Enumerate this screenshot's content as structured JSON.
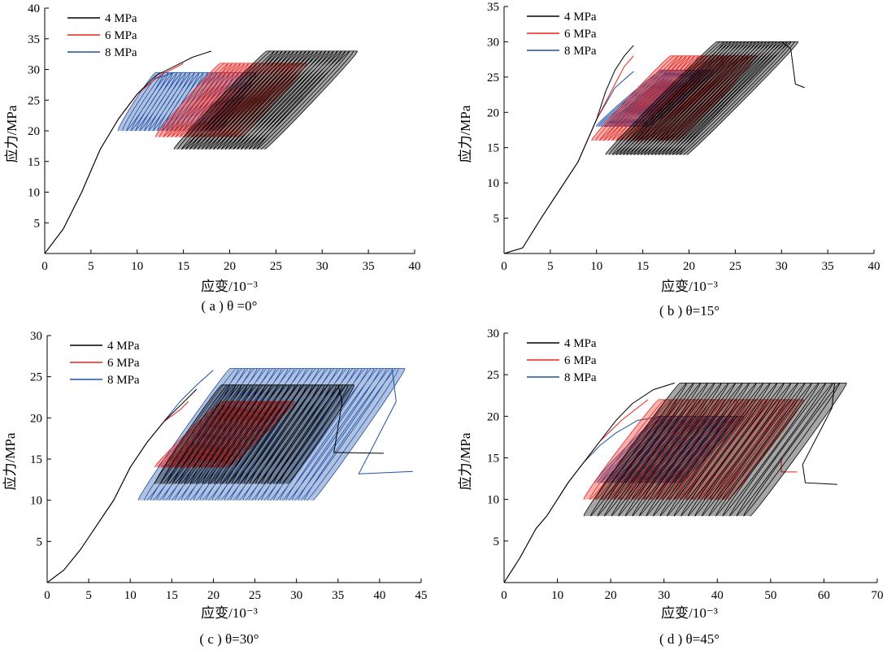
{
  "chart_data": [
    {
      "type": "line",
      "caption": "( a ) θ =0°",
      "xlabel": "应变/10⁻³",
      "ylabel": "应力/MPa",
      "xlim": [
        0,
        40
      ],
      "ylim": [
        0,
        40
      ],
      "xticks": [
        "0",
        "5",
        "10",
        "15",
        "20",
        "25",
        "30",
        "35",
        "40"
      ],
      "yticks": [
        "5",
        "10",
        "15",
        "20",
        "25",
        "30",
        "35",
        "40"
      ],
      "legend_position": "top-left",
      "series": [
        {
          "name": "4 MPa",
          "color": "#000000",
          "loading": [
            [
              0,
              0
            ],
            [
              2,
              4
            ],
            [
              4,
              10
            ],
            [
              6,
              17
            ],
            [
              8,
              22
            ],
            [
              10,
              26
            ],
            [
              12,
              29
            ],
            [
              14,
              30.5
            ],
            [
              16,
              32
            ],
            [
              18,
              33
            ]
          ],
          "cycles": {
            "start": 14,
            "end": 33,
            "count": 22,
            "shift": 10,
            "lower": 17,
            "upper": 33
          },
          "post_peak": []
        },
        {
          "name": "6 MPa",
          "color": "#e8231c",
          "loading": [
            [
              0,
              0
            ],
            [
              2,
              4
            ],
            [
              4,
              10
            ],
            [
              6,
              17
            ],
            [
              8,
              22
            ],
            [
              10,
              26
            ],
            [
              12,
              28.5
            ],
            [
              13,
              29.5
            ],
            [
              14,
              30.2
            ],
            [
              15,
              31
            ]
          ],
          "cycles": {
            "start": 12,
            "end": 27.5,
            "count": 20,
            "shift": 7,
            "lower": 19,
            "upper": 31
          },
          "post_peak": []
        },
        {
          "name": "8 MPa",
          "color": "#1e4fa5",
          "loading": [
            [
              0,
              0
            ],
            [
              2,
              4
            ],
            [
              4,
              10
            ],
            [
              6,
              17
            ],
            [
              8,
              22
            ],
            [
              10,
              26
            ],
            [
              12,
              28.5
            ],
            [
              14,
              29.5
            ]
          ],
          "cycles": {
            "start": 8,
            "end": 22,
            "count": 22,
            "shift": 4,
            "lower": 20,
            "upper": 29.5
          },
          "post_peak": []
        }
      ]
    },
    {
      "type": "line",
      "caption": "( b ) θ=15°",
      "xlabel": "应变/10⁻³",
      "ylabel": "应力/MPa",
      "xlim": [
        0,
        40
      ],
      "ylim": [
        0,
        35
      ],
      "xticks": [
        "0",
        "5",
        "10",
        "15",
        "20",
        "25",
        "30",
        "35",
        "40"
      ],
      "yticks": [
        "5",
        "10",
        "15",
        "20",
        "25",
        "30",
        "35"
      ],
      "legend_position": "top-left",
      "series": [
        {
          "name": "4 MPa",
          "color": "#000000",
          "loading": [
            [
              0,
              0
            ],
            [
              2,
              0.8
            ],
            [
              4,
              5
            ],
            [
              6,
              9
            ],
            [
              8,
              13
            ],
            [
              10,
              19
            ],
            [
              11,
              23
            ],
            [
              12,
              26
            ],
            [
              13,
              28
            ],
            [
              14,
              29.5
            ]
          ],
          "cycles": {
            "start": 11,
            "end": 31,
            "count": 22,
            "shift": 12,
            "lower": 14,
            "upper": 30
          },
          "post_peak": [
            [
              30,
              30
            ],
            [
              31,
              29
            ],
            [
              31.5,
              24
            ],
            [
              32.5,
              23.5
            ]
          ]
        },
        {
          "name": "6 MPa",
          "color": "#e8231c",
          "loading": [
            [
              0,
              0
            ],
            [
              2,
              0.8
            ],
            [
              4,
              5
            ],
            [
              6,
              9
            ],
            [
              8,
              13
            ],
            [
              10,
              19
            ],
            [
              12,
              24
            ],
            [
              13,
              26.5
            ],
            [
              14,
              28
            ]
          ],
          "cycles": {
            "start": 9.5,
            "end": 26.5,
            "count": 20,
            "shift": 8.5,
            "lower": 16,
            "upper": 28
          },
          "post_peak": []
        },
        {
          "name": "8 MPa",
          "color": "#1e4fa5",
          "loading": [
            [
              0,
              0
            ],
            [
              2,
              0.8
            ],
            [
              4,
              5
            ],
            [
              6,
              9
            ],
            [
              8,
              13
            ],
            [
              10,
              19
            ],
            [
              12,
              23.5
            ],
            [
              14,
              25.8
            ]
          ],
          "cycles": {
            "start": 10,
            "end": 22,
            "count": 22,
            "shift": 7,
            "lower": 18,
            "upper": 26
          },
          "post_peak": []
        }
      ]
    },
    {
      "type": "line",
      "caption": "( c ) θ=30°",
      "xlabel": "应变/10⁻³",
      "ylabel": "应力/MPa",
      "xlim": [
        0,
        45
      ],
      "ylim": [
        0,
        30
      ],
      "xticks": [
        "0",
        "5",
        "10",
        "15",
        "20",
        "25",
        "30",
        "35",
        "40",
        "45"
      ],
      "yticks": [
        "5",
        "10",
        "15",
        "20",
        "25",
        "30"
      ],
      "legend_position": "top-left",
      "series": [
        {
          "name": "4 MPa",
          "color": "#000000",
          "loading": [
            [
              0,
              0
            ],
            [
              2,
              1.5
            ],
            [
              4,
              4
            ],
            [
              6,
              7
            ],
            [
              8,
              10
            ],
            [
              10,
              14
            ],
            [
              12,
              17
            ],
            [
              14,
              19.5
            ],
            [
              16,
              21.5
            ],
            [
              18,
              23.5
            ]
          ],
          "cycles": {
            "start": 13,
            "end": 36,
            "count": 22,
            "shift": 8,
            "lower": 12,
            "upper": 24
          },
          "post_peak": [
            [
              35,
              24
            ],
            [
              35.5,
              22
            ],
            [
              34.5,
              15.8
            ],
            [
              40.5,
              15.7
            ]
          ]
        },
        {
          "name": "6 MPa",
          "color": "#e8231c",
          "loading": [
            [
              0,
              0
            ],
            [
              2,
              1.5
            ],
            [
              4,
              4
            ],
            [
              6,
              7
            ],
            [
              8,
              10
            ],
            [
              10,
              14
            ],
            [
              12,
              17
            ],
            [
              14,
              19.5
            ],
            [
              16,
              21
            ],
            [
              17,
              22
            ]
          ],
          "cycles": {
            "start": 13,
            "end": 29,
            "count": 22,
            "shift": 8,
            "lower": 14,
            "upper": 22
          },
          "post_peak": []
        },
        {
          "name": "8 MPa",
          "color": "#1e4fa5",
          "loading": [
            [
              0,
              0
            ],
            [
              2,
              1.5
            ],
            [
              4,
              4
            ],
            [
              6,
              7
            ],
            [
              8,
              10
            ],
            [
              10,
              14
            ],
            [
              12,
              17
            ],
            [
              14,
              19.5
            ],
            [
              16,
              22
            ],
            [
              18,
              24
            ],
            [
              20,
              25.8
            ]
          ],
          "cycles": {
            "start": 11,
            "end": 42,
            "count": 28,
            "shift": 11,
            "lower": 10,
            "upper": 26
          },
          "post_peak": [
            [
              41.5,
              26
            ],
            [
              42,
              22
            ],
            [
              37.5,
              13.2
            ],
            [
              44,
              13.5
            ]
          ]
        }
      ]
    },
    {
      "type": "line",
      "caption": "( d ) θ=45°",
      "xlabel": "应变/10⁻³",
      "ylabel": "应力/MPa",
      "xlim": [
        0,
        70
      ],
      "ylim": [
        0,
        30
      ],
      "xticks": [
        "0",
        "10",
        "20",
        "30",
        "40",
        "50",
        "60",
        "70"
      ],
      "yticks": [
        "5",
        "10",
        "15",
        "20",
        "25",
        "30"
      ],
      "legend_position": "top-left",
      "series": [
        {
          "name": "4 MPa",
          "color": "#000000",
          "loading": [
            [
              0,
              0
            ],
            [
              3,
              3
            ],
            [
              6,
              6.5
            ],
            [
              8,
              8
            ],
            [
              10,
              10
            ],
            [
              12,
              12
            ],
            [
              15,
              14.5
            ],
            [
              18,
              17
            ],
            [
              21,
              19.5
            ],
            [
              24,
              21.5
            ],
            [
              28,
              23.2
            ],
            [
              32,
              24
            ]
          ],
          "cycles": {
            "start": 15,
            "end": 63,
            "count": 24,
            "shift": 18,
            "lower": 8,
            "upper": 24
          },
          "post_peak": [
            [
              62,
              24
            ],
            [
              61.5,
              21
            ],
            [
              56,
              14.2
            ],
            [
              56.5,
              12
            ],
            [
              62.5,
              11.8
            ]
          ]
        },
        {
          "name": "6 MPa",
          "color": "#e8231c",
          "loading": [
            [
              0,
              0
            ],
            [
              3,
              3
            ],
            [
              6,
              6.5
            ],
            [
              8,
              8
            ],
            [
              10,
              10
            ],
            [
              12,
              12
            ],
            [
              15,
              14.5
            ],
            [
              18,
              17
            ],
            [
              22,
              19.5
            ],
            [
              27,
              22
            ]
          ],
          "cycles": {
            "start": 15,
            "end": 55,
            "count": 24,
            "shift": 14,
            "lower": 10,
            "upper": 22
          },
          "post_peak": [
            [
              52,
              15
            ],
            [
              52,
              13.3
            ],
            [
              55,
              13.3
            ]
          ]
        },
        {
          "name": "8 MPa",
          "color": "#1e4fa5",
          "loading": [
            [
              0,
              0
            ],
            [
              3,
              3
            ],
            [
              6,
              6.5
            ],
            [
              8,
              8
            ],
            [
              10,
              10
            ],
            [
              12,
              12
            ],
            [
              15,
              14.5
            ],
            [
              18,
              16.5
            ],
            [
              21,
              18
            ],
            [
              25,
              19.5
            ],
            [
              30,
              20
            ]
          ],
          "cycles": {
            "start": 17,
            "end": 44,
            "count": 24,
            "shift": 12,
            "lower": 12,
            "upper": 20
          },
          "post_peak": []
        }
      ]
    }
  ]
}
